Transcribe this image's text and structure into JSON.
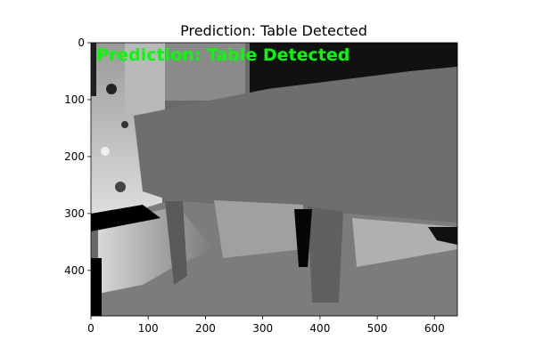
{
  "chart_data": {
    "type": "image",
    "title": "Prediction: Table Detected",
    "annotation": "Prediction: Table Detected",
    "annotation_color": "#00ff00",
    "xlim": [
      0,
      640
    ],
    "ylim": [
      480,
      0
    ],
    "xticks": [
      0,
      100,
      200,
      300,
      400,
      500,
      600
    ],
    "yticks": [
      0,
      100,
      200,
      300,
      400
    ]
  }
}
